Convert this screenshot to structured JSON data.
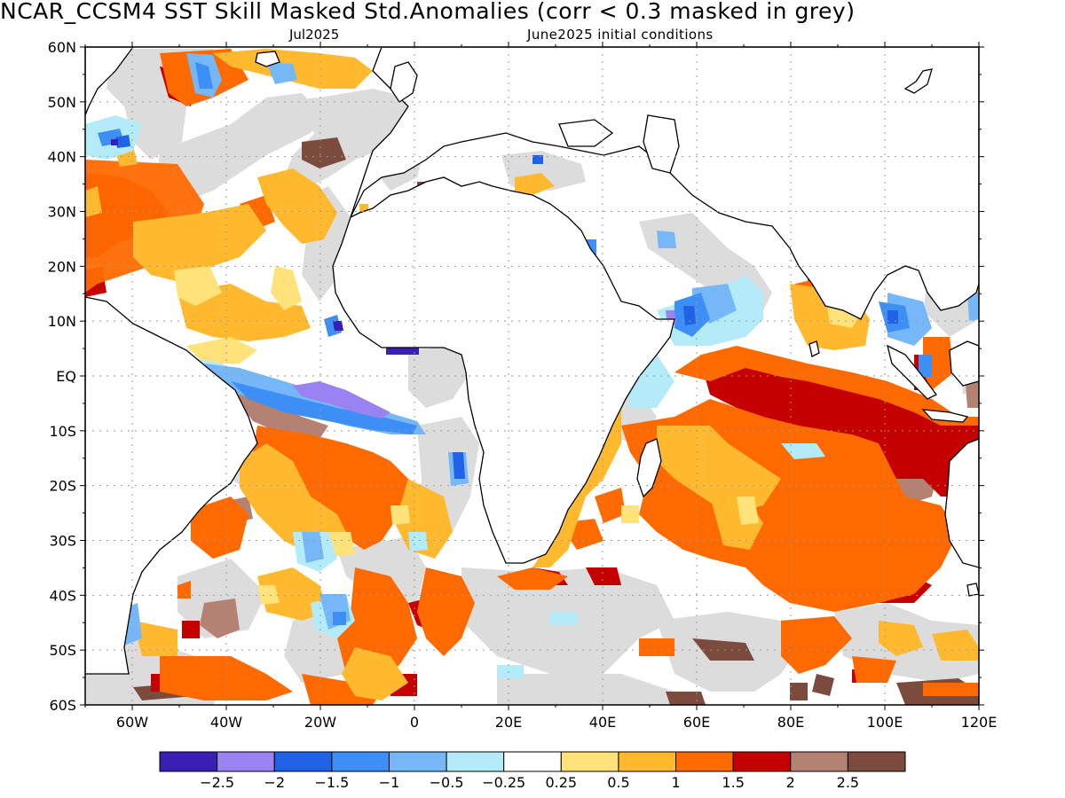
{
  "title": "NCAR_CCSM4  SST Skill Masked Std.Anomalies (corr < 0.3 masked in grey)",
  "subtitle": {
    "valid_month": "Jul2025",
    "initial_conditions": "June2025 initial conditions"
  },
  "axes": {
    "lat_labels": [
      "60N",
      "50N",
      "40N",
      "30N",
      "20N",
      "10N",
      "EQ",
      "10S",
      "20S",
      "30S",
      "40S",
      "50S",
      "60S"
    ],
    "lon_labels": [
      "60W",
      "40W",
      "20W",
      "0",
      "20E",
      "40E",
      "60E",
      "80E",
      "100E",
      "120E"
    ]
  },
  "colorbar": {
    "colors": [
      "#3a1fb5",
      "#9b82f2",
      "#1f62e6",
      "#3d8ef5",
      "#75b7f7",
      "#b3ecf8",
      "#ffffff",
      "#ffe27a",
      "#ffb92e",
      "#ff6a00",
      "#c40000",
      "#b48272",
      "#7b4c3e"
    ],
    "labels": [
      "−2.5",
      "−2",
      "−1.5",
      "−1",
      "−0.5",
      "−0.25",
      "0.25",
      "0.5",
      "1",
      "1.5",
      "2",
      "2.5"
    ]
  },
  "palette": {
    "mask_grey": "#dcdcdc",
    "land": "#ffffff",
    "coast": "#000000"
  }
}
